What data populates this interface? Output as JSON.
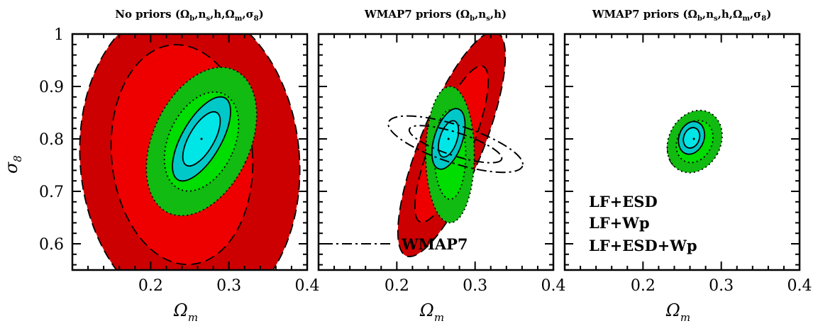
{
  "figure": {
    "y_axis_title": "σ",
    "y_axis_subscript": "8",
    "x_axis_title": "Ω",
    "x_axis_subscript": "m"
  },
  "colors": {
    "lf_esd_outer": "#cc0000",
    "lf_esd_inner": "#ee0000",
    "lf_wp_outer": "#11bb11",
    "lf_wp_inner": "#00dd00",
    "lf_esd_wp_outer": "#00c8c8",
    "lf_esd_wp_inner": "#00e6e6"
  },
  "legend": {
    "items": [
      {
        "label": "LF+ESD",
        "color": "#cc0000"
      },
      {
        "label": "LF+Wp",
        "color": "#11bb11"
      },
      {
        "label": "LF+ESD+Wp",
        "color": "#00c8c8"
      }
    ],
    "wmap_label": "WMAP7"
  },
  "chart_data": [
    {
      "type": "contour",
      "title": "No priors (Ωb,ns,h,Ωm,σ8)",
      "title_parts": [
        "No priors (Ω",
        "b",
        ",n",
        "s",
        ",h,Ω",
        "m",
        ",σ",
        "8",
        ")"
      ],
      "xlabel": "Ωm",
      "ylabel": "σ8",
      "xlim": [
        0.1,
        0.4
      ],
      "ylim": [
        0.55,
        1.0
      ],
      "x_ticks": [
        0.2,
        0.3,
        0.4
      ],
      "x_tick_labels": [
        "0.2",
        "0.3",
        "0.4"
      ],
      "y_ticks": [
        0.6,
        0.7,
        0.8,
        0.9,
        1.0
      ],
      "y_tick_labels": [
        "0.6",
        "0.7",
        "0.8",
        "0.9",
        "1"
      ],
      "series": [
        {
          "name": "LF+ESD",
          "level": "2σ",
          "cx": 0.25,
          "cy": 0.76,
          "rx": 0.14,
          "ry": 0.3,
          "angle": -5
        },
        {
          "name": "LF+ESD",
          "level": "1σ",
          "cx": 0.24,
          "cy": 0.77,
          "rx": 0.09,
          "ry": 0.21,
          "angle": -5
        },
        {
          "name": "LF+Wp",
          "level": "2σ",
          "cx": 0.265,
          "cy": 0.795,
          "rx": 0.062,
          "ry": 0.15,
          "angle": 25
        },
        {
          "name": "LF+Wp",
          "level": "1σ",
          "cx": 0.265,
          "cy": 0.795,
          "rx": 0.042,
          "ry": 0.1,
          "angle": 25
        },
        {
          "name": "LF+ESD+Wp",
          "level": "2σ",
          "cx": 0.265,
          "cy": 0.8,
          "rx": 0.025,
          "ry": 0.09,
          "angle": 30
        },
        {
          "name": "LF+ESD+Wp",
          "level": "1σ",
          "cx": 0.265,
          "cy": 0.8,
          "rx": 0.016,
          "ry": 0.058,
          "angle": 30
        }
      ],
      "best_fit": [
        0.265,
        0.8
      ]
    },
    {
      "type": "contour",
      "title": "WMAP7 priors (Ωb,ns,h)",
      "title_parts": [
        "WMAP7 priors (Ω",
        "b",
        ",n",
        "s",
        ",h)"
      ],
      "xlabel": "Ωm",
      "xlim": [
        0.1,
        0.4
      ],
      "ylim": [
        0.55,
        1.0
      ],
      "x_ticks": [
        0.2,
        0.3,
        0.4
      ],
      "x_tick_labels": [
        "0.2",
        "0.3",
        "0.4"
      ],
      "series": [
        {
          "name": "LF+ESD",
          "level": "2σ",
          "cx": 0.27,
          "cy": 0.79,
          "rx": 0.04,
          "ry": 0.23,
          "angle": 22
        },
        {
          "name": "LF+ESD",
          "level": "1σ",
          "cx": 0.27,
          "cy": 0.79,
          "rx": 0.026,
          "ry": 0.16,
          "angle": 22
        },
        {
          "name": "LF+Wp",
          "level": "2σ",
          "cx": 0.268,
          "cy": 0.77,
          "rx": 0.031,
          "ry": 0.13,
          "angle": 0
        },
        {
          "name": "LF+Wp",
          "level": "1σ",
          "cx": 0.268,
          "cy": 0.77,
          "rx": 0.02,
          "ry": 0.085,
          "angle": 0
        },
        {
          "name": "LF+ESD+Wp",
          "level": "2σ",
          "cx": 0.266,
          "cy": 0.8,
          "rx": 0.018,
          "ry": 0.06,
          "angle": 18
        },
        {
          "name": "LF+ESD+Wp",
          "level": "1σ",
          "cx": 0.266,
          "cy": 0.8,
          "rx": 0.011,
          "ry": 0.036,
          "angle": 18
        },
        {
          "name": "WMAP7",
          "level": "2σ",
          "cx": 0.275,
          "cy": 0.79,
          "rx": 0.09,
          "ry": 0.036,
          "angle": 18
        },
        {
          "name": "WMAP7",
          "level": "1σ",
          "cx": 0.275,
          "cy": 0.79,
          "rx": 0.062,
          "ry": 0.022,
          "angle": 18
        }
      ],
      "best_fit": [
        0.266,
        0.8
      ]
    },
    {
      "type": "contour",
      "title": "WMAP7 priors (Ωb,ns,h,Ωm,σ8)",
      "title_parts": [
        "WMAP7 priors (Ω",
        "b",
        ",n",
        "s",
        ",h,Ω",
        "m",
        ",σ",
        "8",
        ")"
      ],
      "xlabel": "Ωm",
      "xlim": [
        0.1,
        0.4
      ],
      "ylim": [
        0.55,
        1.0
      ],
      "x_ticks": [
        0.2,
        0.3,
        0.4
      ],
      "x_tick_labels": [
        "0.2",
        "0.3",
        "0.4"
      ],
      "series": [
        {
          "name": "LF+ESD",
          "level": "2σ",
          "cx": 0.265,
          "cy": 0.795,
          "rx": 0.03,
          "ry": 0.06,
          "angle": 35
        },
        {
          "name": "LF+Wp",
          "level": "2σ",
          "cx": 0.266,
          "cy": 0.795,
          "rx": 0.033,
          "ry": 0.062,
          "angle": 28
        },
        {
          "name": "LF+Wp",
          "level": "1σ",
          "cx": 0.266,
          "cy": 0.795,
          "rx": 0.022,
          "ry": 0.042,
          "angle": 28
        },
        {
          "name": "LF+ESD+Wp",
          "level": "2σ",
          "cx": 0.262,
          "cy": 0.802,
          "rx": 0.016,
          "ry": 0.032,
          "angle": 20
        },
        {
          "name": "LF+ESD+Wp",
          "level": "1σ",
          "cx": 0.262,
          "cy": 0.802,
          "rx": 0.01,
          "ry": 0.02,
          "angle": 20
        }
      ],
      "best_fit": [
        0.265,
        0.8
      ]
    }
  ]
}
